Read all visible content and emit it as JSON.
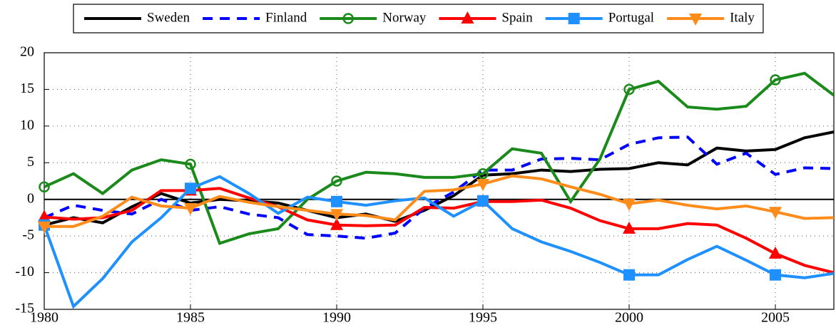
{
  "chart_data": {
    "type": "line",
    "x": [
      1980,
      1981,
      1982,
      1983,
      1984,
      1985,
      1986,
      1987,
      1988,
      1989,
      1990,
      1991,
      1992,
      1993,
      1994,
      1995,
      1996,
      1997,
      1998,
      1999,
      2000,
      2001,
      2002,
      2003,
      2004,
      2005,
      2006,
      2007
    ],
    "series": [
      {
        "name": "Sweden",
        "color": "#000000",
        "dash": false,
        "marker": "none",
        "values": [
          -3.5,
          -2.5,
          -3.2,
          -1,
          0.8,
          -0.5,
          0,
          -0.2,
          -0.5,
          -1.5,
          -2.5,
          -2,
          -3,
          -1.5,
          0.5,
          3.3,
          3.5,
          4,
          3.8,
          4.1,
          4.2,
          5,
          4.7,
          7,
          6.6,
          6.8,
          8.4,
          9.2
        ]
      },
      {
        "name": "Finland",
        "color": "#0000ff",
        "dash": true,
        "marker": "none",
        "values": [
          -2.5,
          -0.8,
          -1.5,
          -2,
          0,
          -1.5,
          -1,
          -2,
          -2.5,
          -4.8,
          -5,
          -5.3,
          -4.6,
          -1.2,
          1,
          4,
          4,
          5.5,
          5.6,
          5.4,
          7.5,
          8.4,
          8.5,
          4.8,
          6.3,
          3.4,
          4.3,
          4.2
        ]
      },
      {
        "name": "Norway",
        "color": "#1a8a1a",
        "dash": false,
        "marker": "circle",
        "values": [
          1.7,
          3.5,
          0.8,
          4,
          5.4,
          4.8,
          -6,
          -4.7,
          -4,
          0,
          2.5,
          3.7,
          3.5,
          3,
          3,
          3.5,
          6.9,
          6.3,
          -0.3,
          5.5,
          15,
          16.1,
          12.6,
          12.3,
          12.7,
          16.3,
          17.2,
          14.2
        ]
      },
      {
        "name": "Spain",
        "color": "#ff0000",
        "dash": false,
        "marker": "triangle",
        "values": [
          -2.4,
          -2.7,
          -2.5,
          -1.5,
          1.2,
          1.2,
          1.5,
          0.2,
          -1,
          -2.8,
          -3.5,
          -3.6,
          -3.5,
          -1.1,
          -1.2,
          -0.3,
          -0.3,
          -0.1,
          -1.2,
          -2.9,
          -4,
          -4,
          -3.3,
          -3.5,
          -5.3,
          -7.4,
          -9,
          -10
        ]
      },
      {
        "name": "Portugal",
        "color": "#1e90ff",
        "dash": false,
        "marker": "square",
        "values": [
          -3.5,
          -14.6,
          -10.8,
          -5.8,
          -2.5,
          1.5,
          3.1,
          0.8,
          -1.9,
          0.3,
          -0.3,
          -0.8,
          -0.2,
          0.2,
          -2.3,
          -0.2,
          -4,
          -5.8,
          -7.1,
          -8.6,
          -10.3,
          -10.3,
          -8.2,
          -6.4,
          -8.3,
          -10.3,
          -10.7,
          -10.1
        ]
      },
      {
        "name": "Italy",
        "color": "#ff8c1a",
        "dash": false,
        "marker": "triangle-down",
        "values": [
          -3.7,
          -3.7,
          -2.3,
          0.3,
          -0.9,
          -1.2,
          0.4,
          -0.4,
          -1,
          -1.5,
          -2,
          -2.2,
          -2.8,
          1.1,
          1.3,
          2.1,
          3.2,
          2.8,
          1.7,
          0.7,
          -0.6,
          -0.1,
          -0.8,
          -1.3,
          -0.9,
          -1.7,
          -2.6,
          -2.5
        ]
      }
    ],
    "xlim": [
      1980,
      2007
    ],
    "xticks": [
      1980,
      1985,
      1990,
      1995,
      2000,
      2005
    ],
    "ylim": [
      -15,
      20
    ],
    "yticks": [
      -15,
      -10,
      -5,
      0,
      5,
      10,
      15,
      20
    ],
    "grid": true
  }
}
